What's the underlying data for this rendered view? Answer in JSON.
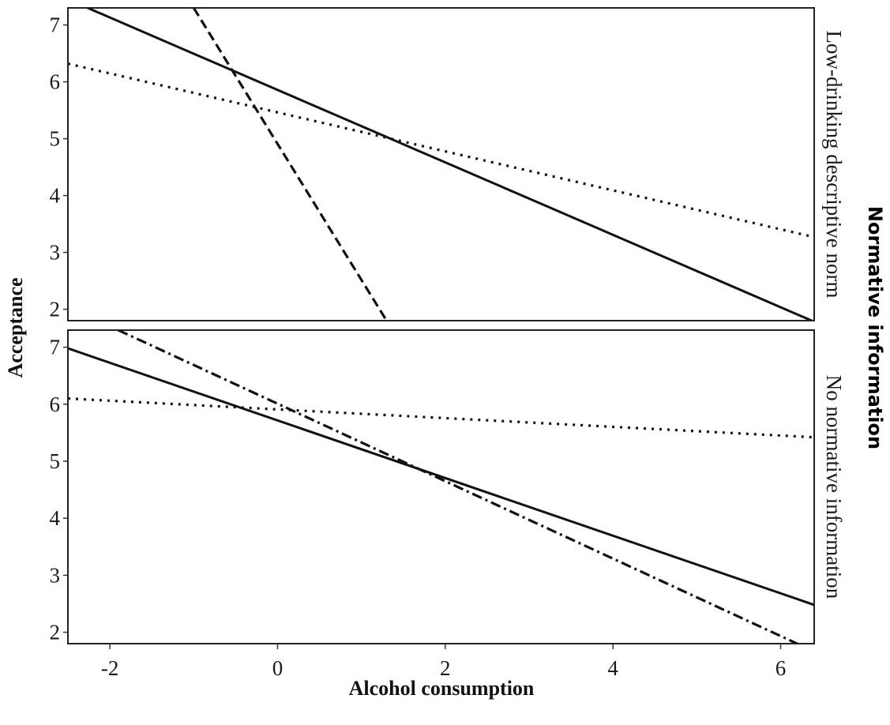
{
  "chart_data": {
    "type": "line",
    "xlabel": "Alcohol consumption",
    "ylabel": "Acceptance",
    "facet_title": "Normative information",
    "xlim": [
      -2.5,
      6.4
    ],
    "ylim": [
      1.8,
      7.3
    ],
    "x_ticks": [
      -2,
      0,
      2,
      4,
      6
    ],
    "x_tick_labels": [
      "-2",
      "0",
      "2",
      "4",
      "6"
    ],
    "y_ticks": [
      2,
      3,
      4,
      5,
      6,
      7
    ],
    "y_tick_labels": [
      "2",
      "3",
      "4",
      "5",
      "6",
      "7"
    ],
    "grid": false,
    "panels": [
      {
        "label": "Low-drinking descriptive norm",
        "series": [
          {
            "style": "solid",
            "x": [
              -2.5,
              6.4
            ],
            "y": [
              7.45,
              1.78
            ]
          },
          {
            "style": "dashed",
            "x": [
              -1.0,
              1.3
            ],
            "y": [
              7.3,
              1.8
            ]
          },
          {
            "style": "dotted",
            "x": [
              -2.5,
              6.4
            ],
            "y": [
              6.32,
              3.27
            ]
          }
        ]
      },
      {
        "label": "No normative information",
        "series": [
          {
            "style": "solid",
            "x": [
              -2.5,
              6.4
            ],
            "y": [
              6.98,
              2.48
            ]
          },
          {
            "style": "dash-dot",
            "x": [
              -1.9,
              6.3
            ],
            "y": [
              7.3,
              1.73
            ]
          },
          {
            "style": "dotted",
            "x": [
              -2.5,
              6.4
            ],
            "y": [
              6.1,
              5.42
            ]
          }
        ]
      }
    ]
  }
}
